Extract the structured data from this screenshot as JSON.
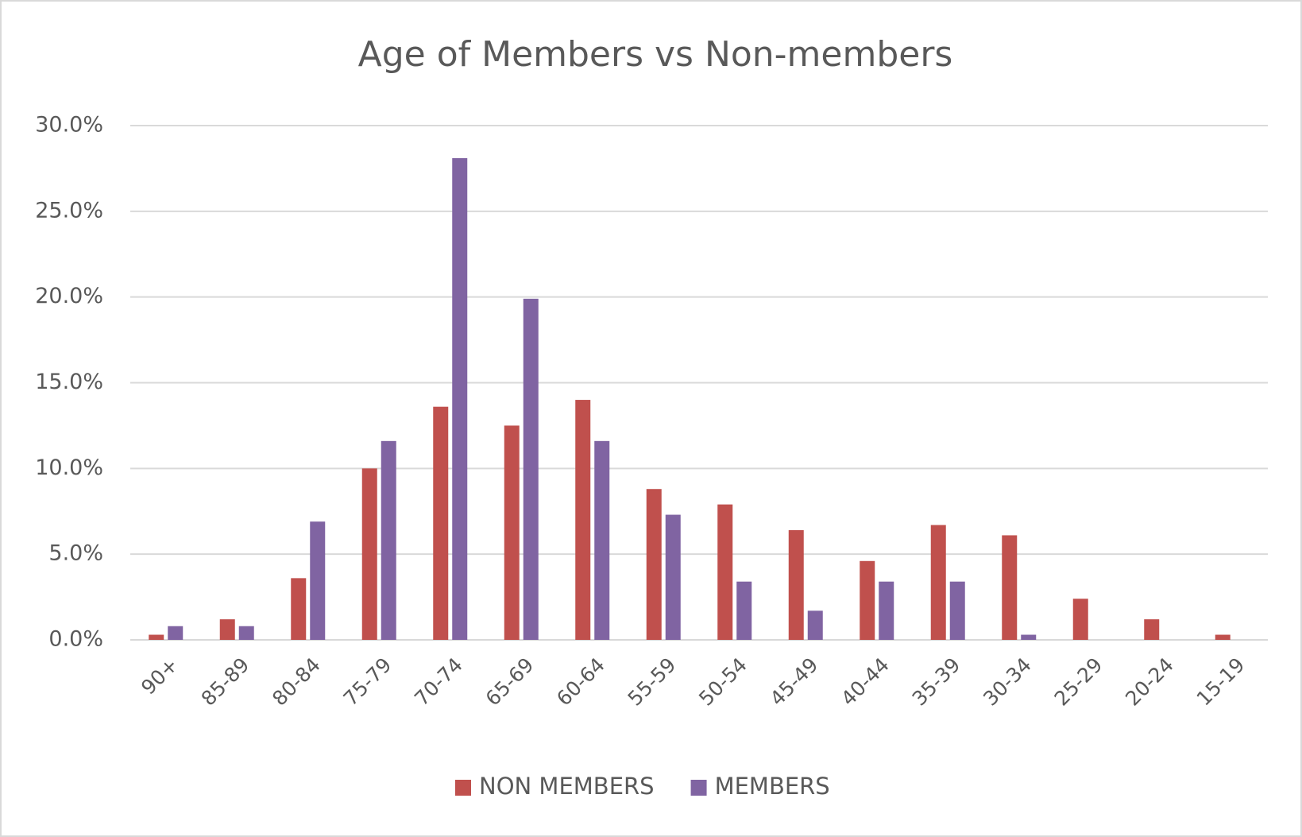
{
  "chart_data": {
    "type": "bar",
    "title": "Age of Members vs Non-members",
    "categories": [
      "90+",
      "85-89",
      "80-84",
      "75-79",
      "70-74",
      "65-69",
      "60-64",
      "55-59",
      "50-54",
      "45-49",
      "40-44",
      "35-39",
      "30-34",
      "25-29",
      "20-24",
      "15-19"
    ],
    "series": [
      {
        "name": "NON MEMBERS",
        "color": "#c0504d",
        "values": [
          0.3,
          1.2,
          3.6,
          10.0,
          13.6,
          12.5,
          14.0,
          8.8,
          7.9,
          6.4,
          4.6,
          6.7,
          6.1,
          2.4,
          1.2,
          0.3
        ]
      },
      {
        "name": "MEMBERS",
        "color": "#8064a2",
        "values": [
          0.8,
          0.8,
          6.9,
          11.6,
          28.1,
          19.9,
          11.6,
          7.3,
          3.4,
          1.7,
          3.4,
          3.4,
          0.3,
          0,
          0,
          0
        ]
      }
    ],
    "ylim": [
      0,
      30
    ],
    "yticks": [
      {
        "value": 0,
        "label": "0.0%"
      },
      {
        "value": 5,
        "label": "5.0%"
      },
      {
        "value": 10,
        "label": "10.0%"
      },
      {
        "value": 15,
        "label": "15.0%"
      },
      {
        "value": 20,
        "label": "20.0%"
      },
      {
        "value": 25,
        "label": "25.0%"
      },
      {
        "value": 30,
        "label": "30.0%"
      }
    ],
    "grid": true,
    "legend": "bottom"
  }
}
